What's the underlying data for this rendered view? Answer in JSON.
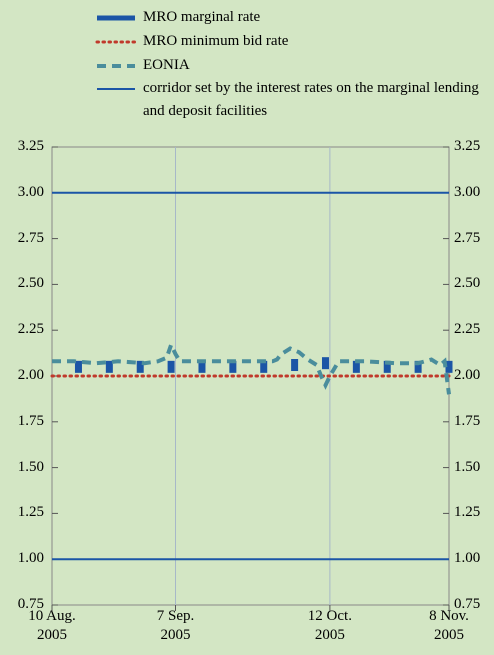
{
  "chart_data": {
    "type": "line",
    "xlim": [
      "2005-08-10",
      "2005-11-08"
    ],
    "xticks": [
      {
        "value": "2005-08-10",
        "label": "10 Aug.\n2005"
      },
      {
        "value": "2005-09-07",
        "label": "7 Sep.\n2005"
      },
      {
        "value": "2005-10-12",
        "label": "12 Oct.\n2005"
      },
      {
        "value": "2005-11-08",
        "label": "8 Nov.\n2005"
      }
    ],
    "ylim": [
      0.75,
      3.25
    ],
    "yticks": [
      {
        "value": 0.75,
        "label": "0.75"
      },
      {
        "value": 1.0,
        "label": "1.00"
      },
      {
        "value": 1.25,
        "label": "1.25"
      },
      {
        "value": 1.5,
        "label": "1.50"
      },
      {
        "value": 1.75,
        "label": "1.75"
      },
      {
        "value": 2.0,
        "label": "2.00"
      },
      {
        "value": 2.25,
        "label": "2.25"
      },
      {
        "value": 2.5,
        "label": "2.50"
      },
      {
        "value": 2.75,
        "label": "2.75"
      },
      {
        "value": 3.0,
        "label": "3.00"
      },
      {
        "value": 3.25,
        "label": "3.25"
      }
    ],
    "grid": "x",
    "legend": "top",
    "series": [
      {
        "name": "MRO marginal rate",
        "color": "#1b55a6",
        "style": "blocks",
        "x": [
          "2005-08-16",
          "2005-08-23",
          "2005-08-30",
          "2005-09-06",
          "2005-09-13",
          "2005-09-20",
          "2005-09-27",
          "2005-10-04",
          "2005-10-11",
          "2005-10-18",
          "2005-10-25",
          "2005-11-01",
          "2005-11-08"
        ],
        "values": [
          2.05,
          2.05,
          2.05,
          2.05,
          2.05,
          2.05,
          2.05,
          2.06,
          2.07,
          2.05,
          2.05,
          2.05,
          2.05
        ]
      },
      {
        "name": "MRO minimum bid rate",
        "color": "#c0392b",
        "style": "dotted",
        "x": [
          "2005-08-10",
          "2005-11-08"
        ],
        "values": [
          2.0,
          2.0
        ]
      },
      {
        "name": "EONIA",
        "color": "#4a8d9c",
        "style": "dashed",
        "x": [
          "2005-08-10",
          "2005-08-15",
          "2005-08-20",
          "2005-08-25",
          "2005-08-31",
          "2005-09-03",
          "2005-09-05",
          "2005-09-06",
          "2005-09-07",
          "2005-09-08",
          "2005-09-15",
          "2005-09-22",
          "2005-09-29",
          "2005-09-30",
          "2005-10-01",
          "2005-10-03",
          "2005-10-05",
          "2005-10-07",
          "2005-10-09",
          "2005-10-10",
          "2005-10-11",
          "2005-10-12",
          "2005-10-14",
          "2005-10-20",
          "2005-10-27",
          "2005-11-01",
          "2005-11-04",
          "2005-11-06",
          "2005-11-07",
          "2005-11-08"
        ],
        "values": [
          2.08,
          2.08,
          2.07,
          2.08,
          2.07,
          2.08,
          2.1,
          2.17,
          2.12,
          2.08,
          2.08,
          2.08,
          2.08,
          2.09,
          2.12,
          2.15,
          2.13,
          2.09,
          2.06,
          2.0,
          1.95,
          2.0,
          2.08,
          2.08,
          2.07,
          2.07,
          2.09,
          2.06,
          2.08,
          1.9
        ]
      },
      {
        "name": "corridor set by the interest rates on the marginal lending and deposit facilities",
        "color": "#1b55a6",
        "style": "levels",
        "values": [
          3.0,
          1.0
        ]
      }
    ]
  }
}
